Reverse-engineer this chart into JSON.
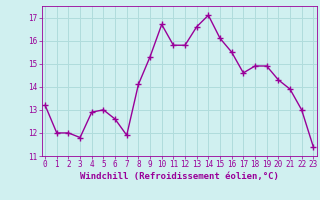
{
  "x": [
    0,
    1,
    2,
    3,
    4,
    5,
    6,
    7,
    8,
    9,
    10,
    11,
    12,
    13,
    14,
    15,
    16,
    17,
    18,
    19,
    20,
    21,
    22,
    23
  ],
  "y": [
    13.2,
    12.0,
    12.0,
    11.8,
    12.9,
    13.0,
    12.6,
    11.9,
    14.1,
    15.3,
    16.7,
    15.8,
    15.8,
    16.6,
    17.1,
    16.1,
    15.5,
    14.6,
    14.9,
    14.9,
    14.3,
    13.9,
    13.0,
    11.4
  ],
  "line_color": "#990099",
  "marker": "+",
  "marker_size": 4,
  "marker_lw": 1.0,
  "bg_color": "#d0f0f0",
  "grid_color": "#b0dcdc",
  "xlabel": "Windchill (Refroidissement éolien,°C)",
  "xlabel_color": "#990099",
  "ylim": [
    11,
    17.5
  ],
  "yticks": [
    11,
    12,
    13,
    14,
    15,
    16,
    17
  ],
  "xticks": [
    0,
    1,
    2,
    3,
    4,
    5,
    6,
    7,
    8,
    9,
    10,
    11,
    12,
    13,
    14,
    15,
    16,
    17,
    18,
    19,
    20,
    21,
    22,
    23
  ],
  "tick_color": "#990099",
  "tick_fontsize": 5.5,
  "xlabel_fontsize": 6.5,
  "line_width": 1.0,
  "xlim": [
    -0.3,
    23.3
  ]
}
